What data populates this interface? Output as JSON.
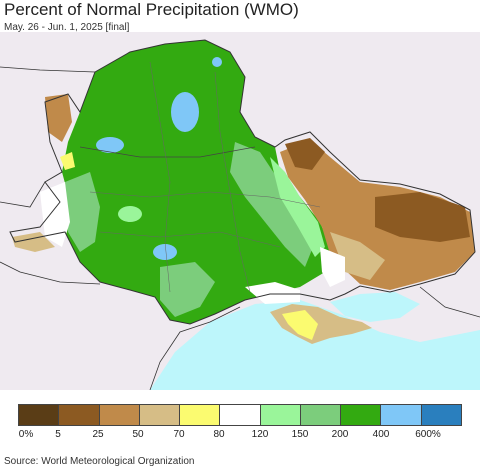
{
  "header": {
    "title": "Percent of Normal Precipitation (WMO)",
    "subtitle": "May. 26 - Jun. 1, 2025 [final]"
  },
  "map": {
    "sea_color": "#bdf6fb",
    "land_outside_color": "#efeaf0",
    "border_color": "#555555"
  },
  "legend": {
    "labels": [
      "0%",
      "5",
      "25",
      "50",
      "70",
      "80",
      "120",
      "150",
      "200",
      "400",
      "600%"
    ],
    "colors": [
      "#5a3d16",
      "#8c5a22",
      "#c08a4a",
      "#d6bd86",
      "#fbfb70",
      "#ffffff",
      "#9af59a",
      "#7ccd7c",
      "#33aa11",
      "#7fc7f7",
      "#2a7fbe"
    ]
  },
  "footer": {
    "source": "Source: World Meteorological Organization"
  }
}
